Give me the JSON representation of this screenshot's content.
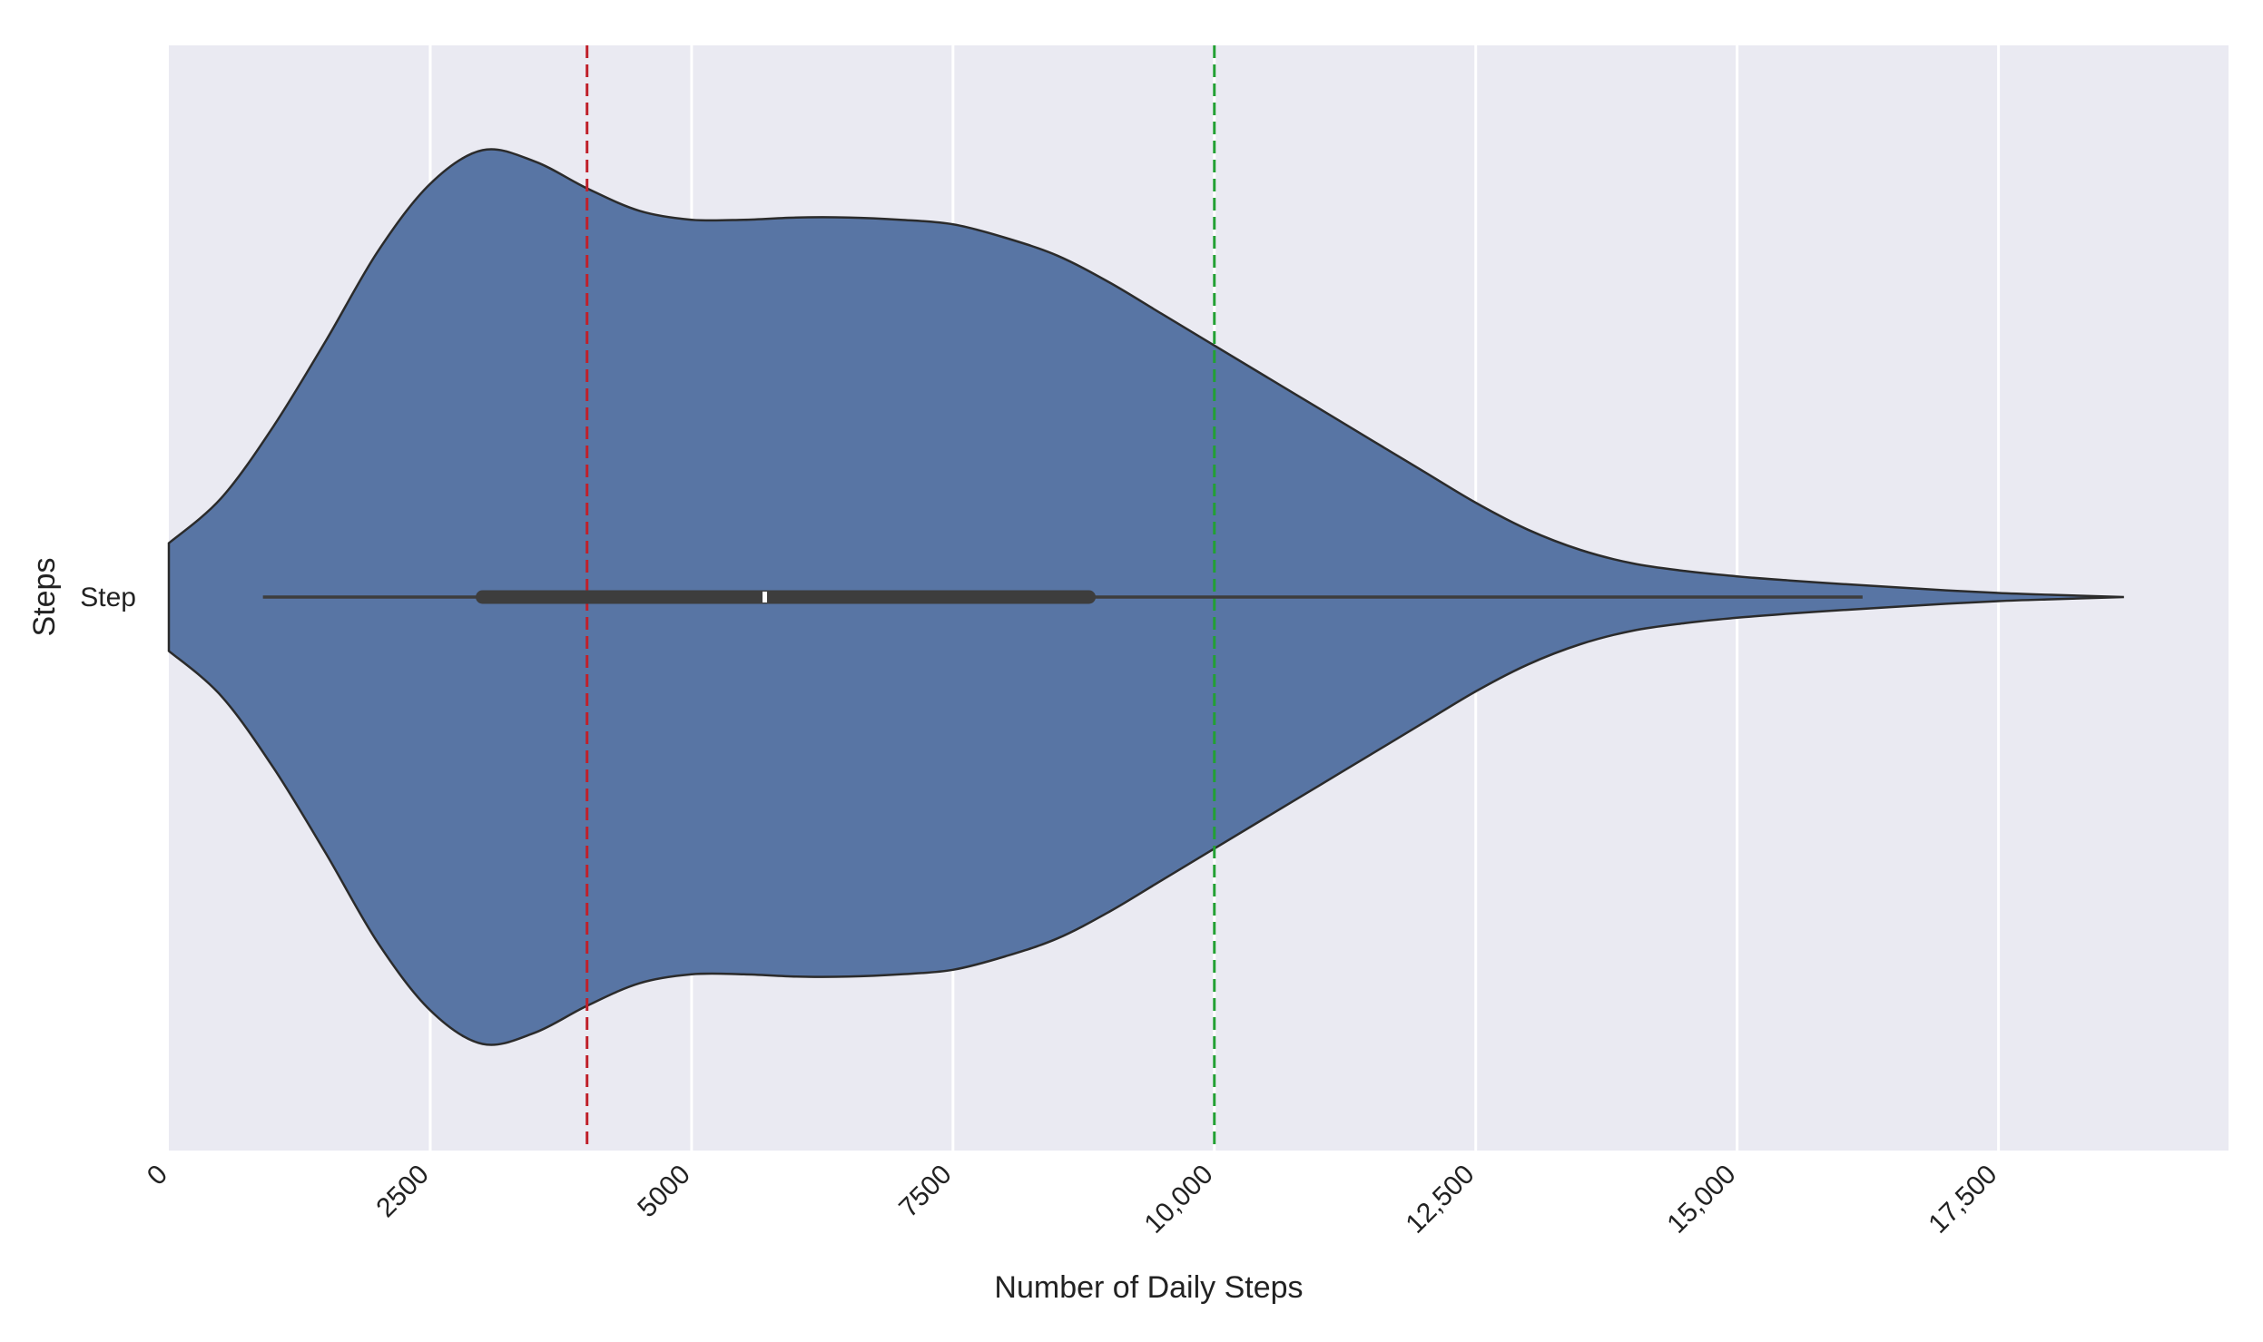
{
  "chart_data": {
    "type": "violin",
    "orientation": "horizontal",
    "category": "Step",
    "xlabel": "Number of Daily Steps",
    "ylabel": "Steps",
    "xlim": [
      0,
      19700
    ],
    "x_ticks": [
      0,
      2500,
      5000,
      7500,
      10000,
      12500,
      15000,
      17500
    ],
    "x_tick_labels": [
      "0",
      "2500",
      "5000",
      "7500",
      "10,000",
      "12,500",
      "15,000",
      "17,500"
    ],
    "grid": true,
    "background_color": "#eaeaf2",
    "violin_color": "#5875a4",
    "density_profile": [
      [
        0,
        0.12
      ],
      [
        500,
        0.22
      ],
      [
        1000,
        0.38
      ],
      [
        1500,
        0.57
      ],
      [
        2000,
        0.77
      ],
      [
        2500,
        0.92
      ],
      [
        3000,
        0.995
      ],
      [
        3500,
        0.97
      ],
      [
        4000,
        0.91
      ],
      [
        4500,
        0.86
      ],
      [
        5000,
        0.84
      ],
      [
        5500,
        0.84
      ],
      [
        6000,
        0.845
      ],
      [
        6500,
        0.845
      ],
      [
        7000,
        0.84
      ],
      [
        7500,
        0.83
      ],
      [
        8000,
        0.8
      ],
      [
        8500,
        0.76
      ],
      [
        9000,
        0.7
      ],
      [
        9500,
        0.63
      ],
      [
        10000,
        0.56
      ],
      [
        10500,
        0.49
      ],
      [
        11000,
        0.42
      ],
      [
        11500,
        0.35
      ],
      [
        12000,
        0.28
      ],
      [
        12500,
        0.21
      ],
      [
        13000,
        0.15
      ],
      [
        13500,
        0.105
      ],
      [
        14000,
        0.075
      ],
      [
        14500,
        0.058
      ],
      [
        15000,
        0.046
      ],
      [
        15500,
        0.037
      ],
      [
        16000,
        0.029
      ],
      [
        16500,
        0.022
      ],
      [
        17000,
        0.015
      ],
      [
        17500,
        0.009
      ],
      [
        18000,
        0.005
      ],
      [
        18700,
        0.0
      ]
    ],
    "box": {
      "whisker_low": 900,
      "q1": 3000,
      "median": 5700,
      "q3": 8800,
      "whisker_high": 16200,
      "max": 18700
    },
    "reference_lines": [
      {
        "x": 4000,
        "color": "#c0202a",
        "style": "dashed"
      },
      {
        "x": 10000,
        "color": "#22a033",
        "style": "dashed"
      }
    ]
  }
}
